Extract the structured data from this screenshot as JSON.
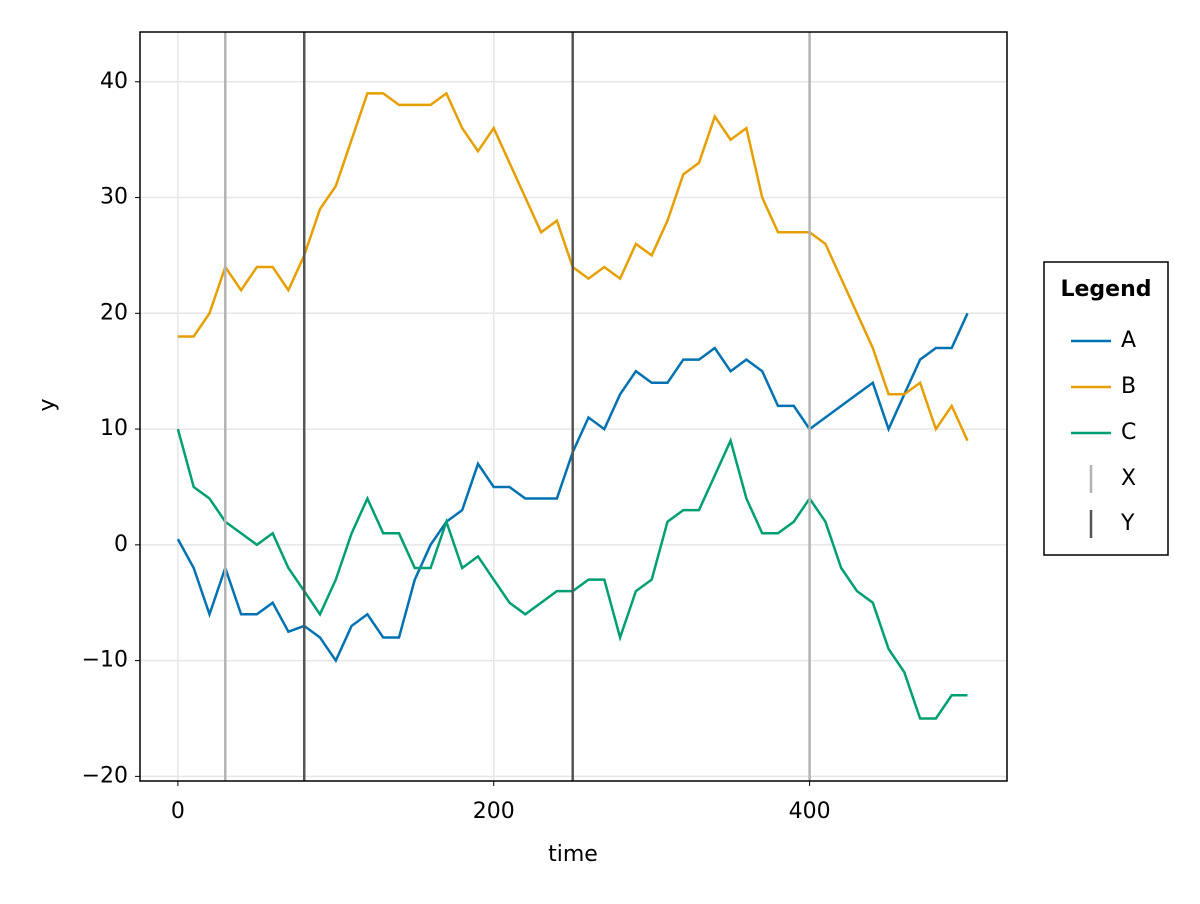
{
  "chart_data": {
    "type": "line",
    "xlabel": "time",
    "ylabel": "y",
    "xlim": [
      -24,
      525
    ],
    "ylim": [
      -20.4,
      44.3
    ],
    "xticks": [
      0,
      200,
      400
    ],
    "yticks": [
      {
        "value": -20,
        "label": "−20"
      },
      {
        "value": -10,
        "label": "−10"
      },
      0,
      10,
      20,
      30,
      40
    ],
    "grid": true,
    "legend_title": "Legend",
    "legend_position": "right",
    "x": [
      0,
      10,
      20,
      30,
      40,
      50,
      60,
      70,
      80,
      90,
      100,
      110,
      120,
      130,
      140,
      150,
      160,
      170,
      180,
      190,
      200,
      210,
      220,
      230,
      240,
      250,
      260,
      270,
      280,
      290,
      300,
      310,
      320,
      330,
      340,
      350,
      360,
      370,
      380,
      390,
      400,
      410,
      420,
      430,
      440,
      450,
      460,
      470,
      480,
      490,
      500
    ],
    "series": [
      {
        "name": "A",
        "color": "#0072b2",
        "values": [
          0.5,
          -2,
          -6,
          -2,
          -6,
          -6,
          -5,
          -7.5,
          -7,
          -8,
          -10,
          -7,
          -6,
          -8,
          -8,
          -3,
          0,
          2,
          3,
          7,
          5,
          5,
          4,
          4,
          4,
          8,
          11,
          10,
          13,
          15,
          14,
          14,
          16,
          16,
          17,
          15,
          16,
          15,
          12,
          12,
          10,
          11,
          12,
          13,
          14,
          10,
          13,
          16,
          17,
          17,
          20
        ]
      },
      {
        "name": "B",
        "color": "#e69f00",
        "values": [
          18,
          18,
          20,
          24,
          22,
          24,
          24,
          22,
          25,
          29,
          31,
          35,
          39,
          39,
          38,
          38,
          38,
          39,
          36,
          34,
          36,
          33,
          30,
          27,
          28,
          24,
          23,
          24,
          23,
          26,
          25,
          28,
          32,
          33,
          37,
          35,
          36,
          30,
          27,
          27,
          27,
          26,
          23,
          20,
          17,
          13,
          13,
          14,
          10,
          12,
          9
        ]
      },
      {
        "name": "C",
        "color": "#009e73",
        "values": [
          10,
          5,
          4,
          2,
          1,
          0,
          1,
          -2,
          -4,
          -6,
          -3,
          1,
          4,
          1,
          1,
          -2,
          -2,
          2,
          -2,
          -1,
          -3,
          -5,
          -6,
          -5,
          -4,
          -4,
          -3,
          -3,
          -8,
          -4,
          -3,
          2,
          3,
          3,
          6,
          9,
          4,
          1,
          1,
          2,
          4,
          2,
          -2,
          -4,
          -5,
          -9,
          -11,
          -15,
          -15,
          -13,
          -13
        ]
      }
    ],
    "vlines": [
      {
        "name": "X",
        "color": "#b3b3b3",
        "x": [
          30,
          400
        ]
      },
      {
        "name": "Y",
        "color": "#555555",
        "x": [
          80,
          250
        ]
      }
    ]
  }
}
